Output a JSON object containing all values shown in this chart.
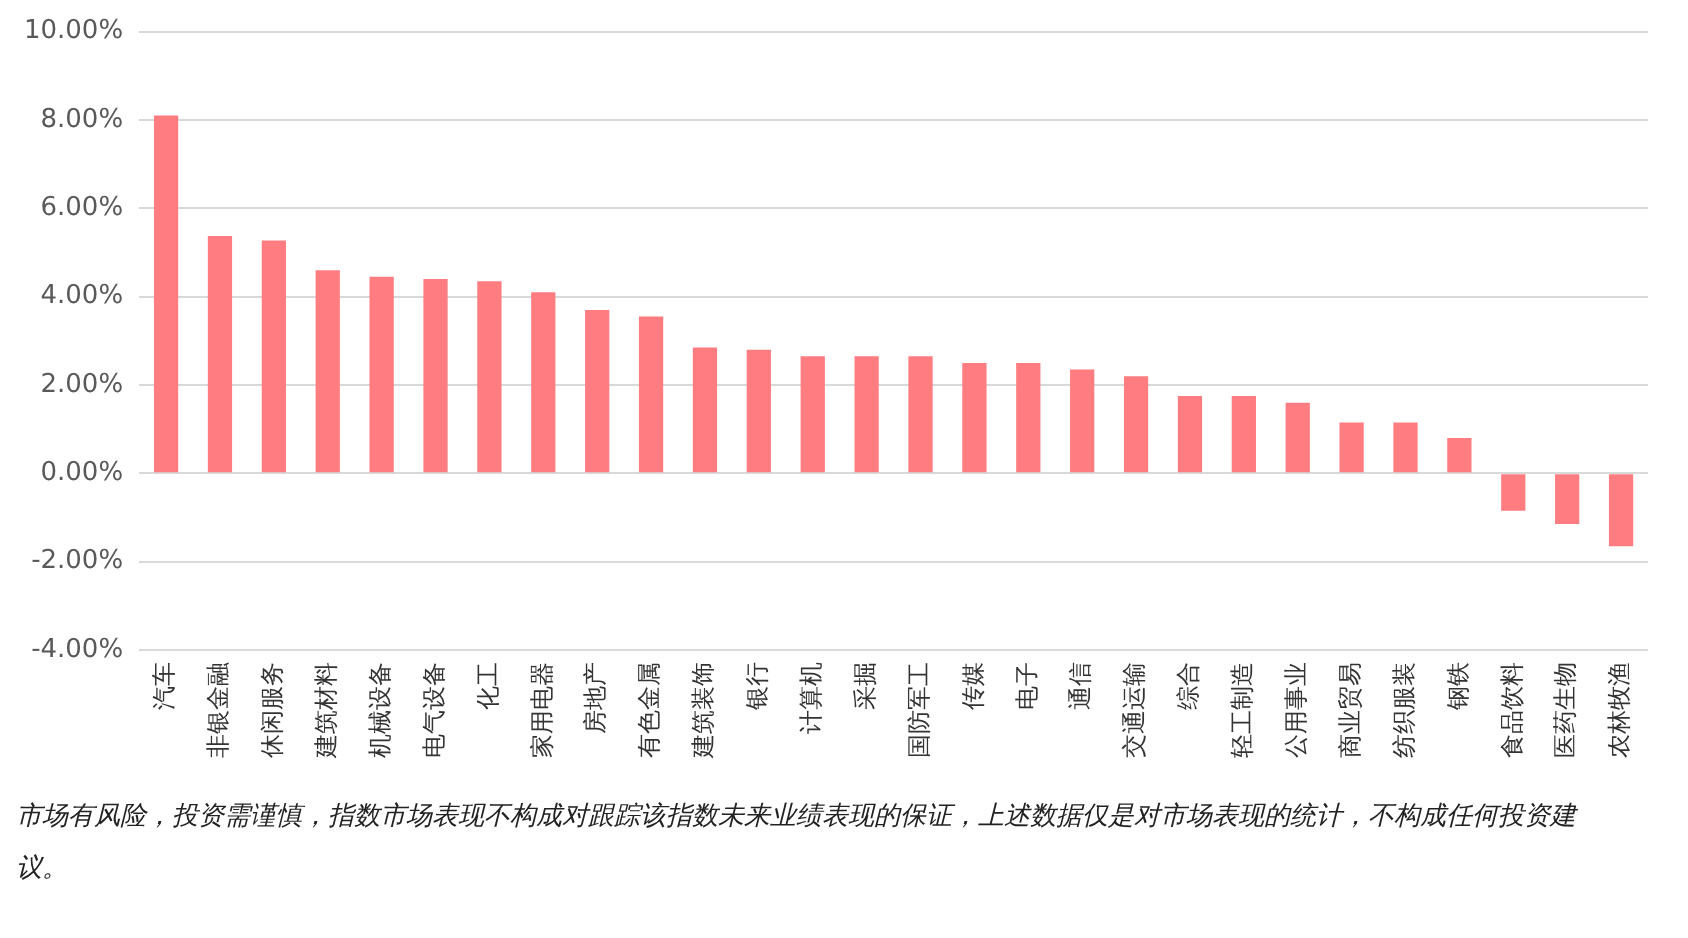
{
  "chart_data": {
    "type": "bar",
    "categories": [
      "汽车",
      "非银金融",
      "休闲服务",
      "建筑材料",
      "机械设备",
      "电气设备",
      "化工",
      "家用电器",
      "房地产",
      "有色金属",
      "建筑装饰",
      "银行",
      "计算机",
      "采掘",
      "国防军工",
      "传媒",
      "电子",
      "通信",
      "交通运输",
      "综合",
      "轻工制造",
      "公用事业",
      "商业贸易",
      "纺织服装",
      "钢铁",
      "食品饮料",
      "医药生物",
      "农林牧渔"
    ],
    "values": [
      8.1,
      5.37,
      5.27,
      4.6,
      4.45,
      4.4,
      4.35,
      4.1,
      3.7,
      3.55,
      2.85,
      2.8,
      2.65,
      2.65,
      2.65,
      2.5,
      2.5,
      2.35,
      2.2,
      1.75,
      1.75,
      1.6,
      1.15,
      1.15,
      0.8,
      -0.85,
      -1.15,
      -1.65
    ],
    "color": "#ff7c80",
    "ylim": [
      -4,
      10
    ],
    "yticks": [
      {
        "value": -4,
        "label": "-4.00%"
      },
      {
        "value": -2,
        "label": "-2.00%"
      },
      {
        "value": 0,
        "label": "0.00%"
      },
      {
        "value": 2,
        "label": "2.00%"
      },
      {
        "value": 4,
        "label": "4.00%"
      },
      {
        "value": 6,
        "label": "6.00%"
      },
      {
        "value": 8,
        "label": "8.00%"
      },
      {
        "value": 10,
        "label": "10.00%"
      }
    ],
    "grid": "y",
    "annotations": [
      "市场有风险，投资需谨慎，指数市场表现不构成对跟踪该指数未来业绩表现的保证，上述数据仅是对市场表现的统计，不构成任何投资建议。"
    ]
  }
}
